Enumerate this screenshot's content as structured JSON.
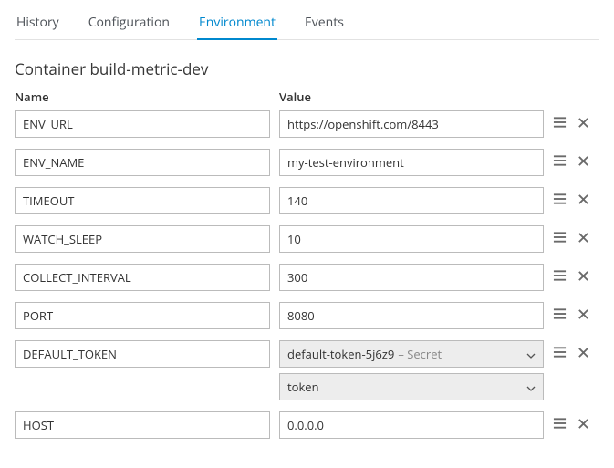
{
  "tabs": {
    "items": [
      {
        "label": "History",
        "active": false
      },
      {
        "label": "Configuration",
        "active": false
      },
      {
        "label": "Environment",
        "active": true
      },
      {
        "label": "Events",
        "active": false
      }
    ]
  },
  "section_title": "Container build-metric-dev",
  "columns": {
    "name": "Name",
    "value": "Value"
  },
  "rows": [
    {
      "name": "ENV_URL",
      "type": "text",
      "value": "https://openshift.com/8443"
    },
    {
      "name": "ENV_NAME",
      "type": "text",
      "value": "my-test-environment"
    },
    {
      "name": "TIMEOUT",
      "type": "text",
      "value": "140"
    },
    {
      "name": "WATCH_SLEEP",
      "type": "text",
      "value": "10"
    },
    {
      "name": "COLLECT_INTERVAL",
      "type": "text",
      "value": "300"
    },
    {
      "name": "PORT",
      "type": "text",
      "value": "8080"
    },
    {
      "name": "DEFAULT_TOKEN",
      "type": "secret",
      "secret_name": "default-token-5j6z9",
      "secret_suffix": " – Secret",
      "secret_key": "token"
    },
    {
      "name": "HOST",
      "type": "text",
      "value": "0.0.0.0"
    }
  ],
  "icons": {
    "reorder": "reorder-icon",
    "remove": "close-icon",
    "chevron": "chevron-down-icon"
  }
}
